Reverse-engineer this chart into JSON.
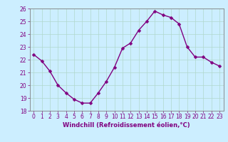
{
  "x": [
    0,
    1,
    2,
    3,
    4,
    5,
    6,
    7,
    8,
    9,
    10,
    11,
    12,
    13,
    14,
    15,
    16,
    17,
    18,
    19,
    20,
    21,
    22,
    23
  ],
  "y": [
    22.4,
    21.9,
    21.1,
    20.0,
    19.4,
    18.9,
    18.6,
    18.6,
    19.4,
    20.3,
    21.4,
    22.9,
    23.3,
    24.3,
    25.0,
    25.8,
    25.5,
    25.3,
    24.8,
    23.0,
    22.2,
    22.2,
    21.8,
    21.5
  ],
  "line_color": "#800080",
  "marker_color": "#800080",
  "bg_color": "#cceeff",
  "grid_color": "#aaddcc",
  "xlabel": "Windchill (Refroidissement éolien,°C)",
  "xlabel_color": "#800080",
  "tick_color": "#800080",
  "spine_color": "#808080",
  "ylim": [
    18,
    26
  ],
  "xlim": [
    -0.5,
    23.5
  ],
  "yticks": [
    18,
    19,
    20,
    21,
    22,
    23,
    24,
    25,
    26
  ],
  "xticks": [
    0,
    1,
    2,
    3,
    4,
    5,
    6,
    7,
    8,
    9,
    10,
    11,
    12,
    13,
    14,
    15,
    16,
    17,
    18,
    19,
    20,
    21,
    22,
    23
  ],
  "linewidth": 1.0,
  "markersize": 2.5,
  "tick_fontsize": 5.5,
  "xlabel_fontsize": 6.0
}
